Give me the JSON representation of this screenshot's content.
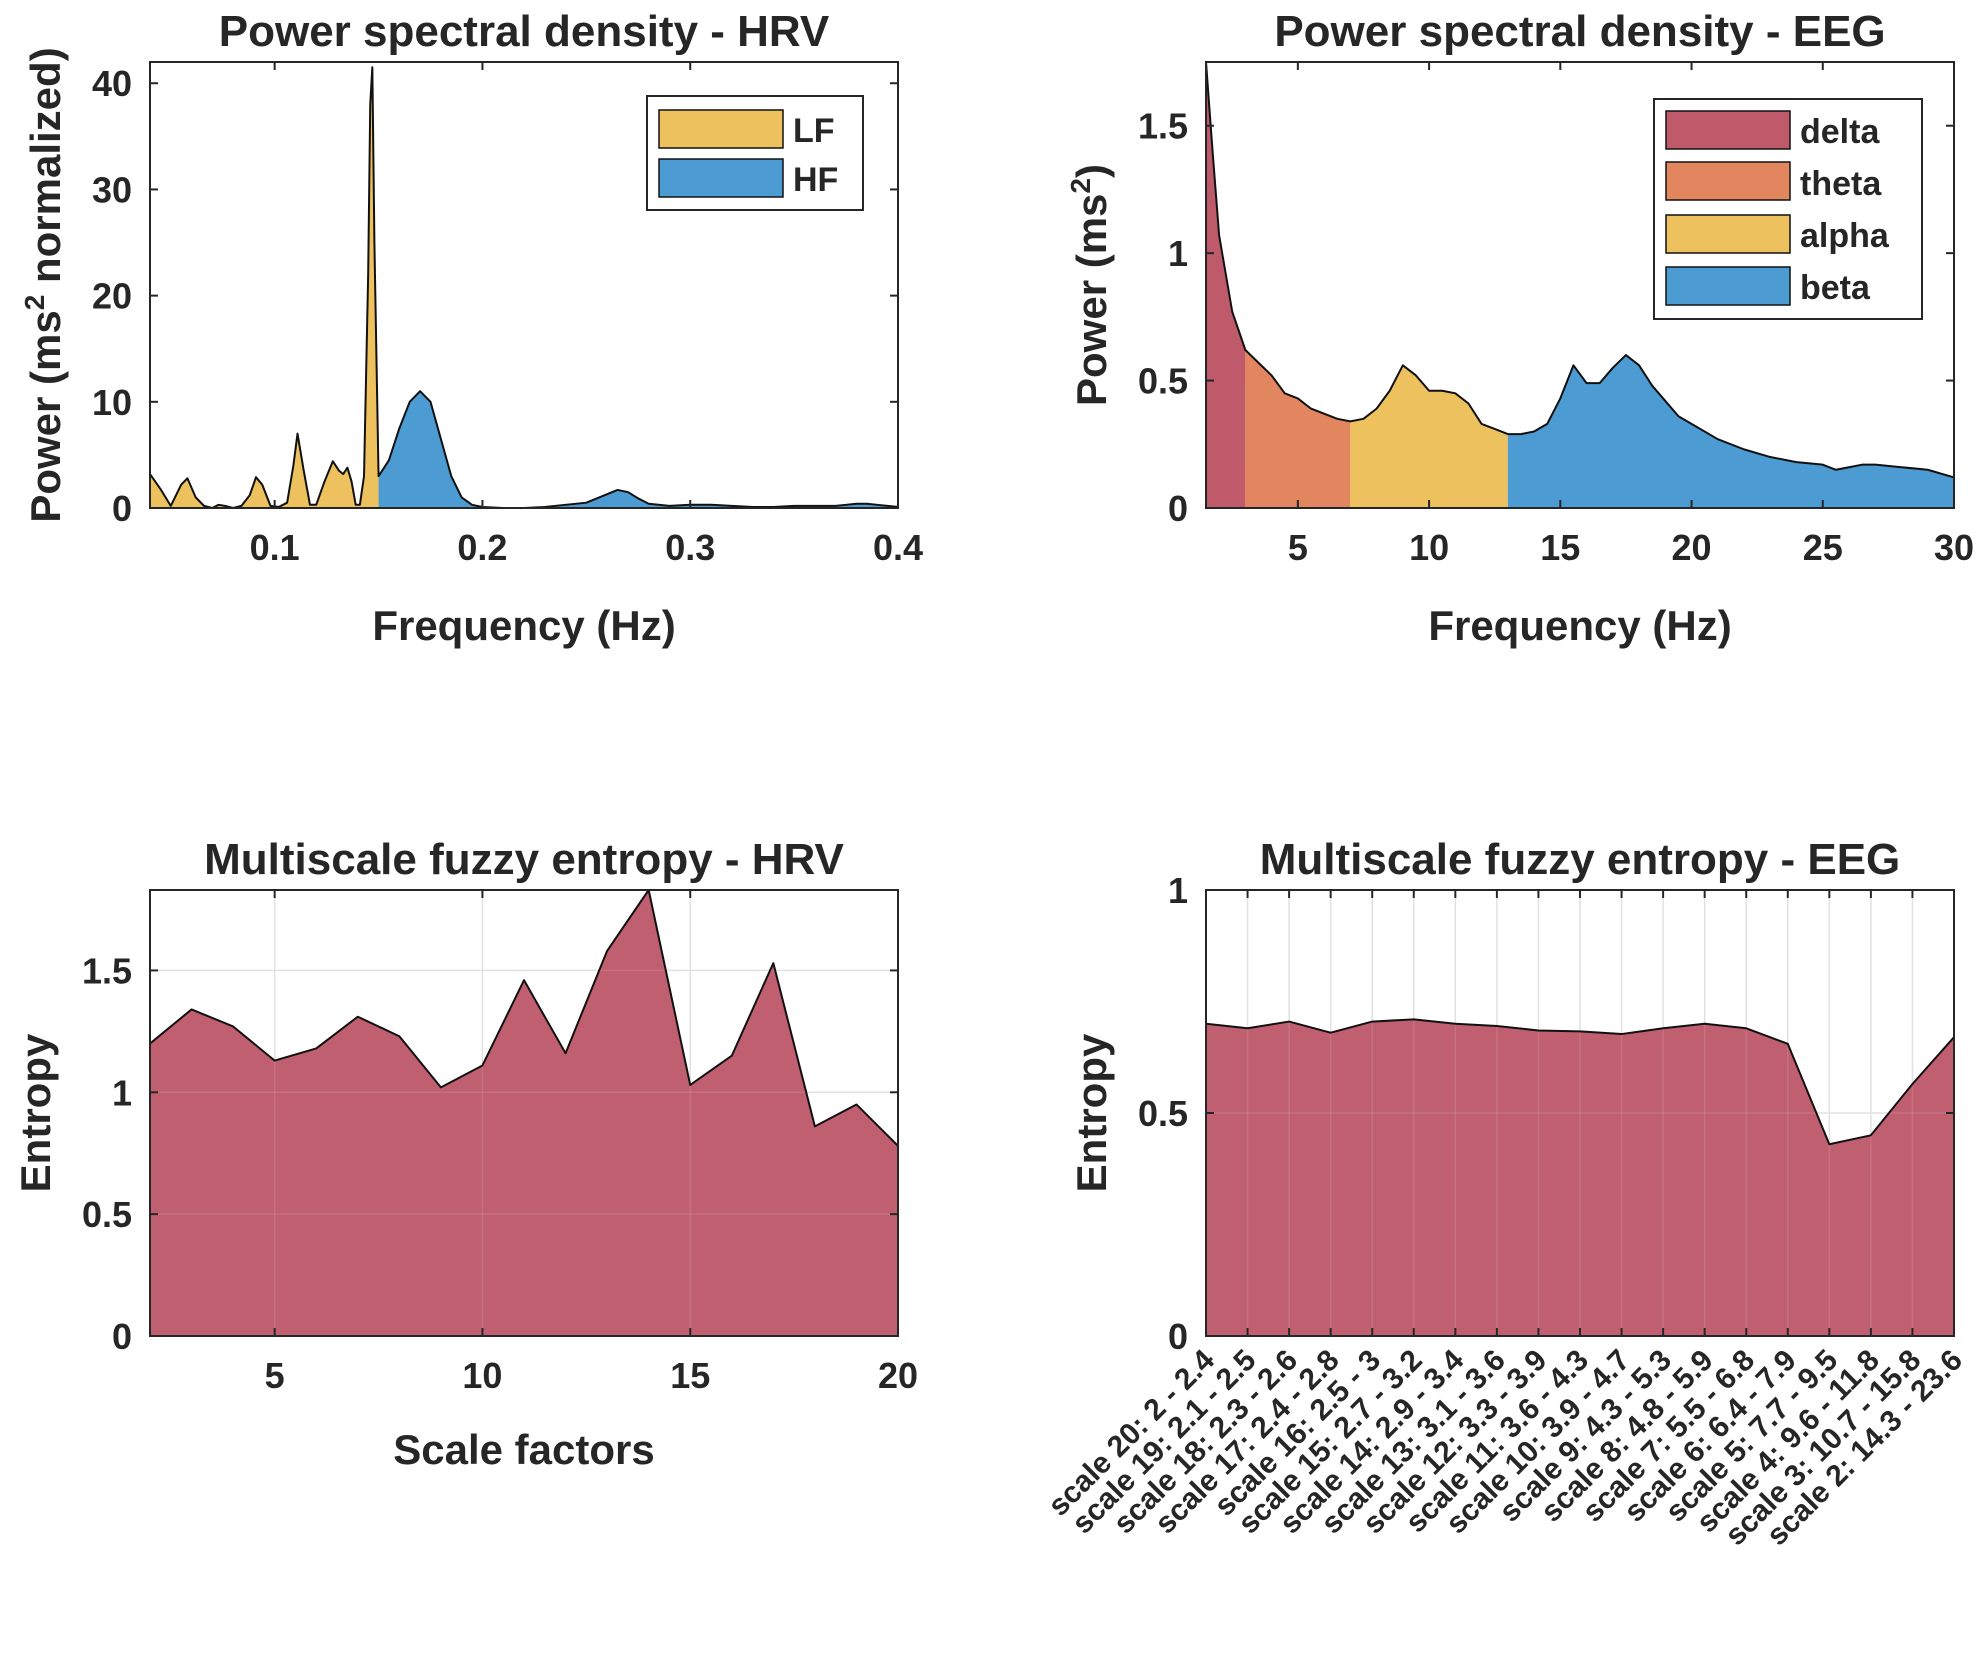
{
  "colors": {
    "lf": "#EDC25E",
    "hf": "#4C9BD3",
    "delta": "#BE5A6A",
    "theta": "#E2865F",
    "alpha": "#EDC25E",
    "beta": "#4C9BD3",
    "entropy_fill": "#BE5A6A",
    "outline": "#111111",
    "grid": "#dddddd"
  },
  "chart_data": [
    {
      "id": "psd-hrv",
      "type": "area",
      "title": "Power spectral density - HRV",
      "xlabel": "Frequency (Hz)",
      "ylabel_parts": [
        "Power (ms",
        "2",
        " normalized)"
      ],
      "xlim": [
        0.04,
        0.4
      ],
      "ylim": [
        0,
        42
      ],
      "xticks": [
        0.1,
        0.2,
        0.3,
        0.4
      ],
      "xtick_labels": [
        "0.1",
        "0.2",
        "0.3",
        "0.4"
      ],
      "yticks": [
        0,
        10,
        20,
        30,
        40
      ],
      "ytick_labels": [
        "0",
        "10",
        "20",
        "30",
        "40"
      ],
      "grid": false,
      "legend_position": "top-right",
      "bands": [
        {
          "name": "LF",
          "range": [
            0.04,
            0.15
          ],
          "color_key": "lf"
        },
        {
          "name": "HF",
          "range": [
            0.15,
            0.4
          ],
          "color_key": "hf"
        }
      ],
      "x": [
        0.04,
        0.045,
        0.05,
        0.055,
        0.058,
        0.062,
        0.066,
        0.07,
        0.073,
        0.076,
        0.08,
        0.084,
        0.088,
        0.091,
        0.094,
        0.098,
        0.102,
        0.106,
        0.109,
        0.111,
        0.114,
        0.117,
        0.12,
        0.124,
        0.128,
        0.131,
        0.133,
        0.135,
        0.137,
        0.139,
        0.141,
        0.143,
        0.145,
        0.146,
        0.147,
        0.148,
        0.15,
        0.155,
        0.16,
        0.165,
        0.17,
        0.175,
        0.18,
        0.185,
        0.19,
        0.195,
        0.2,
        0.21,
        0.22,
        0.23,
        0.24,
        0.25,
        0.26,
        0.265,
        0.27,
        0.275,
        0.28,
        0.29,
        0.3,
        0.31,
        0.32,
        0.33,
        0.34,
        0.35,
        0.36,
        0.37,
        0.375,
        0.38,
        0.385,
        0.39,
        0.4
      ],
      "y": [
        3.2,
        1.8,
        0.2,
        2.2,
        2.8,
        1.0,
        0.2,
        0.0,
        0.3,
        0.2,
        0.0,
        0.2,
        1.2,
        2.9,
        2.2,
        0.2,
        0.1,
        0.5,
        4.0,
        7.0,
        3.5,
        0.3,
        0.3,
        2.5,
        4.4,
        3.5,
        3.2,
        3.8,
        2.5,
        0.3,
        0.3,
        3.0,
        22.0,
        38.0,
        41.5,
        25.0,
        3.0,
        4.5,
        7.5,
        10.0,
        11.0,
        10.0,
        6.5,
        3.0,
        1.0,
        0.3,
        0.1,
        0.0,
        0.0,
        0.1,
        0.3,
        0.5,
        1.3,
        1.7,
        1.5,
        0.9,
        0.4,
        0.2,
        0.3,
        0.3,
        0.2,
        0.1,
        0.1,
        0.2,
        0.2,
        0.2,
        0.3,
        0.4,
        0.4,
        0.3,
        0.1
      ]
    },
    {
      "id": "psd-eeg",
      "type": "area",
      "title": "Power spectral density - EEG",
      "xlabel": "Frequency (Hz)",
      "ylabel_parts": [
        "Power (ms",
        "2",
        ")"
      ],
      "xlim": [
        1.5,
        30
      ],
      "ylim": [
        0,
        1.75
      ],
      "xticks": [
        5,
        10,
        15,
        20,
        25,
        30
      ],
      "xtick_labels": [
        "5",
        "10",
        "15",
        "20",
        "25",
        "30"
      ],
      "yticks": [
        0,
        0.5,
        1,
        1.5
      ],
      "ytick_labels": [
        "0",
        "0.5",
        "1",
        "1.5"
      ],
      "grid": false,
      "legend_position": "top-right",
      "bands": [
        {
          "name": "delta",
          "range": [
            1.5,
            3
          ],
          "color_key": "delta"
        },
        {
          "name": "theta",
          "range": [
            3,
            7
          ],
          "color_key": "theta"
        },
        {
          "name": "alpha",
          "range": [
            7,
            13
          ],
          "color_key": "alpha"
        },
        {
          "name": "beta",
          "range": [
            13,
            30
          ],
          "color_key": "beta"
        }
      ],
      "x": [
        1.5,
        1.75,
        2,
        2.5,
        3,
        3.5,
        4,
        4.5,
        5,
        5.5,
        6,
        6.5,
        7,
        7.5,
        8,
        8.5,
        9,
        9.5,
        10,
        10.5,
        11,
        11.5,
        12,
        12.5,
        13,
        13.5,
        14,
        14.5,
        15,
        15.5,
        16,
        16.5,
        17,
        17.5,
        18,
        18.5,
        19,
        19.5,
        20,
        21,
        22,
        23,
        24,
        25,
        25.5,
        26,
        26.5,
        27,
        28,
        29,
        30
      ],
      "y": [
        1.75,
        1.4,
        1.07,
        0.77,
        0.62,
        0.57,
        0.52,
        0.45,
        0.43,
        0.39,
        0.37,
        0.35,
        0.34,
        0.35,
        0.39,
        0.46,
        0.56,
        0.52,
        0.46,
        0.46,
        0.45,
        0.41,
        0.33,
        0.31,
        0.29,
        0.29,
        0.3,
        0.33,
        0.43,
        0.56,
        0.49,
        0.49,
        0.55,
        0.6,
        0.56,
        0.48,
        0.42,
        0.36,
        0.33,
        0.27,
        0.23,
        0.2,
        0.18,
        0.17,
        0.15,
        0.16,
        0.17,
        0.17,
        0.16,
        0.15,
        0.12
      ]
    },
    {
      "id": "mfe-hrv",
      "type": "area",
      "title": "Multiscale fuzzy entropy - HRV",
      "xlabel": "Scale factors",
      "ylabel": "Entropy",
      "xlim": [
        2,
        20
      ],
      "ylim": [
        0,
        1.83
      ],
      "xticks": [
        5,
        10,
        15,
        20
      ],
      "xtick_labels": [
        "5",
        "10",
        "15",
        "20"
      ],
      "yticks": [
        0,
        0.5,
        1,
        1.5
      ],
      "ytick_labels": [
        "0",
        "0.5",
        "1",
        "1.5"
      ],
      "grid": true,
      "x": [
        2,
        3,
        4,
        5,
        6,
        7,
        8,
        9,
        10,
        11,
        12,
        13,
        14,
        15,
        16,
        17,
        18,
        19,
        20
      ],
      "y": [
        1.2,
        1.34,
        1.27,
        1.13,
        1.18,
        1.31,
        1.23,
        1.02,
        1.11,
        1.46,
        1.16,
        1.58,
        1.83,
        1.03,
        1.15,
        1.53,
        0.86,
        0.95,
        0.78
      ]
    },
    {
      "id": "mfe-eeg",
      "type": "area",
      "title": "Multiscale fuzzy entropy - EEG",
      "ylabel": "Entropy",
      "ylim": [
        0,
        1
      ],
      "yticks": [
        0,
        0.5,
        1
      ],
      "ytick_labels": [
        "0",
        "0.5",
        "1"
      ],
      "grid": true,
      "categories": [
        "scale 20: 2 - 2.4",
        "scale 19: 2.1 - 2.5",
        "scale 18: 2.3 - 2.6",
        "scale 17: 2.4 - 2.8",
        "scale 16: 2.5 - 3",
        "scale 15: 2.7 - 3.2",
        "scale 14: 2.9 - 3.4",
        "scale 13: 3.1 - 3.6",
        "scale 12: 3.3 - 3.9",
        "scale 11: 3.6 - 4.3",
        "scale 10: 3.9 - 4.7",
        "scale 9: 4.3 - 5.3",
        "scale 8: 4.8 - 5.9",
        "scale 7: 5.5 - 6.8",
        "scale 6: 6.4 - 7.9",
        "scale 5: 7.7 - 9.5",
        "scale 4: 9.6 - 11.8",
        "scale 3: 10.7 - 15.8",
        "scale 2: 14.3 - 23.6"
      ],
      "values": [
        0.7,
        0.69,
        0.705,
        0.68,
        0.705,
        0.71,
        0.7,
        0.695,
        0.685,
        0.683,
        0.677,
        0.69,
        0.7,
        0.69,
        0.655,
        0.43,
        0.45,
        0.565,
        0.67
      ]
    }
  ]
}
